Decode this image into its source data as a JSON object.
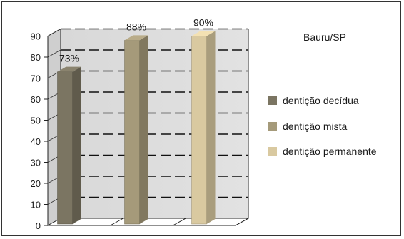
{
  "chart_data": {
    "type": "bar",
    "title": "Bauru/SP",
    "categories": [
      "dentição decídua",
      "dentição mista",
      "dentição permanente"
    ],
    "values": [
      73,
      88,
      90
    ],
    "data_labels": [
      "73%",
      "88%",
      "90%"
    ],
    "colors": [
      "#7b7562",
      "#a59a7a",
      "#d9c9a0"
    ],
    "ylim": [
      0,
      90
    ],
    "yticks": [
      "0",
      "10",
      "20",
      "30",
      "40",
      "50",
      "60",
      "70",
      "80",
      "90"
    ],
    "grid": true,
    "legend_position": "right"
  }
}
